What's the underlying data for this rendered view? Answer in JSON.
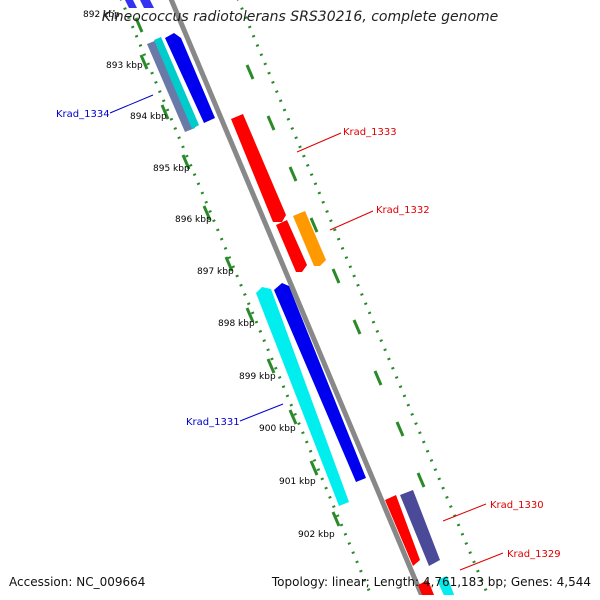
{
  "title": "Kineococcus radiotolerans SRS30216, complete genome",
  "accession": "Accession: NC_009664",
  "summary": "Topology: linear; Length: 4,761,183 bp; Genes: 4,544",
  "ticks": [
    "892 kbp",
    "893 kbp",
    "894 kbp",
    "895 kbp",
    "896 kbp",
    "897 kbp",
    "898 kbp",
    "899 kbp",
    "900 kbp",
    "901 kbp",
    "902 kbp"
  ],
  "genes": [
    {
      "label": "Krad_1334",
      "color": "#0000cc"
    },
    {
      "label": "Krad_1333",
      "color": "#dd0000"
    },
    {
      "label": "Krad_1332",
      "color": "#dd0000"
    },
    {
      "label": "Krad_1331",
      "color": "#0000cc"
    },
    {
      "label": "Krad_1330",
      "color": "#dd0000"
    },
    {
      "label": "Krad_1329",
      "color": "#dd0000"
    }
  ],
  "colors": {
    "backbone": "#888888",
    "dotted_track": "#2a8a2a",
    "cds_red": "#ff0000",
    "cds_blue": "#0000ee",
    "cds_cyan": "#00eeee",
    "cds_orange": "#ff9900",
    "cds_slate": "#4a4a99"
  }
}
